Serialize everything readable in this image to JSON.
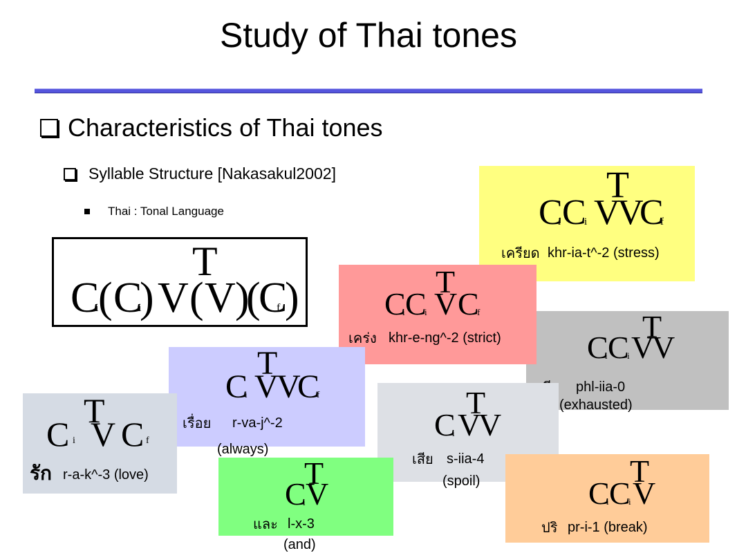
{
  "title": "Study of Thai tones",
  "heading": "Characteristics of Thai tones",
  "subheading": "Syllable Structure [Nakasakul2002]",
  "bullet": "Thai : Tonal Language",
  "general_structure": {
    "tone": "T",
    "c1": "C",
    "sub_i1": "i",
    "p1": "(",
    "c2": "C",
    "sub_i2": "i",
    "p2": ")",
    "v1": "V",
    "p3": "(",
    "v2": "V",
    "p4": ")",
    "p5": "(",
    "c3": "C",
    "sub_f": "f",
    "p6": ")"
  },
  "boxes": {
    "yellow": {
      "color": "#ffff80",
      "tone": "T",
      "c1": "C",
      "i1": "i",
      "c2": "C",
      "i2": "i",
      "v1": "V",
      "v2": "V",
      "c3": "C",
      "f": "f",
      "thai": "เครียด",
      "label": "khr-ia-t^-2 (stress)"
    },
    "red": {
      "color": "#ff9999",
      "tone": "T",
      "c1": "C",
      "i1": "i",
      "c2": "C",
      "i2": "i",
      "v1": "V",
      "c3": "C",
      "f": "f",
      "thai": "เคร่ง",
      "label": "khr-e-ng^-2 (strict)"
    },
    "gray": {
      "color": "#c0c0c0",
      "tone": "T",
      "c1": "C",
      "i1": "i",
      "c2": "C",
      "i2": "i",
      "v1": "V",
      "v2": "V",
      "thai": "เพลีย",
      "label": "phl-iia-0",
      "label2": "(exhausted)"
    },
    "lavender": {
      "color": "#ccccff",
      "tone": "T",
      "c1": "C",
      "i1": "i",
      "v1": "V",
      "v2": "V",
      "c3": "C",
      "f": "f",
      "thai": "เรื่อย",
      "label": "r-va-j^-2",
      "label2": "(always)"
    },
    "lightgray": {
      "color": "#dde0e5",
      "tone": "T",
      "c1": "C",
      "i1": "i",
      "v1": "V",
      "v2": "V",
      "thai": "เสีย",
      "label": "s-iia-4",
      "label2": "(spoil)"
    },
    "bluegray": {
      "color": "#d5dbe4",
      "tone": "T",
      "c1": "C",
      "i1": "i",
      "v1": "V",
      "c3": "C",
      "f": "f",
      "thai": "รัก",
      "label": "r-a-k^-3 (love)"
    },
    "green": {
      "color": "#80ff80",
      "tone": "T",
      "c1": "C",
      "i1": "i",
      "v1": "V",
      "thai": "และ",
      "label": "l-x-3",
      "label2": "(and)"
    },
    "peach": {
      "color": "#ffcc99",
      "tone": "T",
      "c1": "C",
      "i1": "i",
      "c2": "C",
      "i2": "i",
      "v1": "V",
      "thai": "ปริ",
      "label": "pr-i-1 (break)"
    }
  }
}
